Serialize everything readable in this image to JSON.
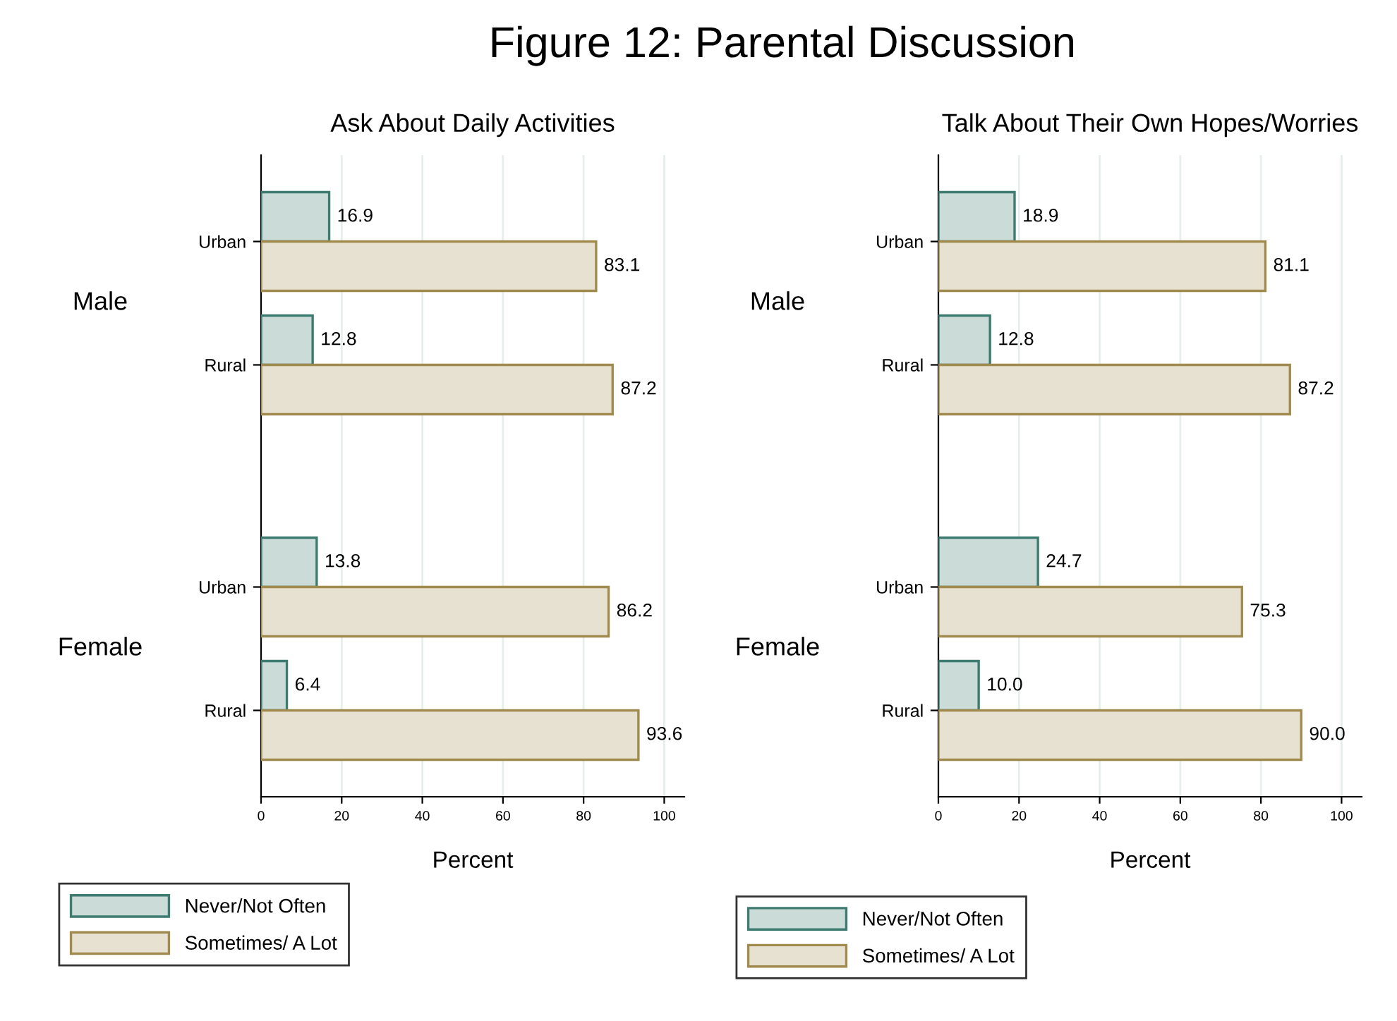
{
  "chart_data": [
    {
      "type": "bar",
      "orientation": "horizontal",
      "title": "Ask About Daily Activities",
      "xlabel": "Percent",
      "categories": [
        "Urban",
        "Rural",
        "Urban",
        "Rural"
      ],
      "annotations": [
        "Figure 12: Parental Discussion",
        "Male",
        "Female"
      ],
      "series": [
        {
          "name": "Never/Not Often",
          "color": "#cadbd8",
          "values": [
            16.9,
            12.8,
            13.8,
            6.4
          ],
          "value_labels": [
            "16.9",
            "12.8",
            "13.8",
            "6.4"
          ]
        },
        {
          "name": "Sometimes/ A Lot",
          "color": "#e7e1d1",
          "values": [
            83.1,
            87.2,
            86.2,
            93.6
          ],
          "value_labels": [
            "83.1",
            "87.2",
            "86.2",
            "93.6"
          ]
        }
      ],
      "xlim": [
        0,
        105
      ],
      "xticks": [
        0,
        20,
        40,
        60,
        80,
        100
      ],
      "grid": "x",
      "legend": "bottom left"
    },
    {
      "type": "bar",
      "orientation": "horizontal",
      "title": "Talk About Their Own Hopes/Worries",
      "xlabel": "Percent",
      "categories": [
        "Urban",
        "Rural",
        "Urban",
        "Rural"
      ],
      "annotations": [
        "Male",
        "Female"
      ],
      "series": [
        {
          "name": "Never/Not Often",
          "color": "#cadbd8",
          "values": [
            18.9,
            12.8,
            24.7,
            10.0
          ],
          "value_labels": [
            "18.9",
            "12.8",
            "24.7",
            "10.0"
          ]
        },
        {
          "name": "Sometimes/ A Lot",
          "color": "#e7e1d1",
          "values": [
            81.1,
            87.2,
            75.3,
            90.0
          ],
          "value_labels": [
            "81.1",
            "87.2",
            "75.3",
            "90.0"
          ]
        }
      ],
      "xlim": [
        0,
        105
      ],
      "xticks": [
        0,
        20,
        40,
        60,
        80,
        100
      ],
      "grid": "x",
      "legend": "bottom left"
    }
  ]
}
